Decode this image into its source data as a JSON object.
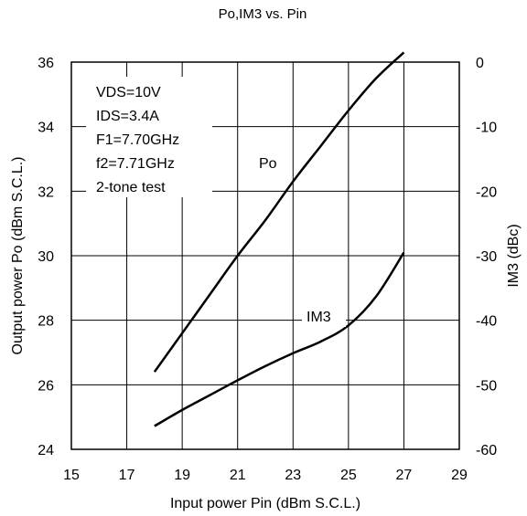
{
  "chart_data": {
    "type": "line",
    "title": "Po,IM3 vs. Pin",
    "xlabel": "Input power Pin (dBm S.C.L.)",
    "ylabel_left": "Output power Po (dBm S.C.L.)",
    "ylabel_right": "IM3 (dBc)",
    "xlim": [
      15,
      29
    ],
    "ylim_left": [
      24,
      36
    ],
    "ylim_right": [
      -60,
      0
    ],
    "x_ticks": [
      15,
      17,
      19,
      21,
      23,
      25,
      27,
      29
    ],
    "y_ticks_left": [
      24,
      26,
      28,
      30,
      32,
      34,
      36
    ],
    "y_ticks_right": [
      -60,
      -50,
      -40,
      -30,
      -20,
      -10,
      0
    ],
    "grid": true,
    "annotations": [
      "VDS=10V",
      "IDS=3.4A",
      "F1=7.70GHz",
      "f2=7.71GHz",
      "2-tone test"
    ],
    "series": [
      {
        "name": "Po",
        "axis": "left",
        "x": [
          18,
          19,
          20,
          21,
          22,
          23,
          24,
          25,
          26,
          27
        ],
        "y": [
          26.4,
          27.6,
          28.8,
          30.0,
          31.1,
          32.3,
          33.4,
          34.5,
          35.5,
          36.3
        ]
      },
      {
        "name": "IM3",
        "axis": "right",
        "x": [
          18,
          19,
          20,
          21,
          22,
          23,
          24,
          25,
          26,
          27
        ],
        "y": [
          -56.4,
          -53.9,
          -51.6,
          -49.3,
          -47.1,
          -45.1,
          -43.3,
          -40.8,
          -36.3,
          -29.5
        ]
      }
    ]
  }
}
